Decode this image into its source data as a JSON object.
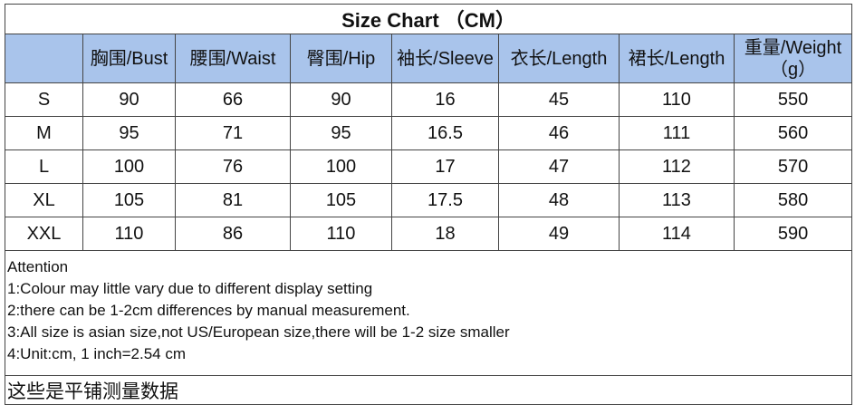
{
  "title": "Size Chart （CM）",
  "table": {
    "header": [
      "",
      "胸围/Bust",
      "腰围/Waist",
      "臀围/Hip",
      "袖长/Sleeve",
      "衣长/Length",
      "裙长/Length",
      "重量/Weight\n（g）"
    ],
    "rows": [
      [
        "S",
        "90",
        "66",
        "90",
        "16",
        "45",
        "110",
        "550"
      ],
      [
        "M",
        "95",
        "71",
        "95",
        "16.5",
        "46",
        "111",
        "560"
      ],
      [
        "L",
        "100",
        "76",
        "100",
        "17",
        "47",
        "112",
        "570"
      ],
      [
        "XL",
        "105",
        "81",
        "105",
        "17.5",
        "48",
        "113",
        "580"
      ],
      [
        "XXL",
        "110",
        "86",
        "110",
        "18",
        "49",
        "114",
        "590"
      ]
    ]
  },
  "notes": [
    "Attention",
    "1:Colour may little vary due to different display setting",
    "2:there can be 1-2cm differences by manual measurement.",
    "3:All size is asian size,not US/European size,there will be 1-2 size smaller",
    "4:Unit:cm, 1 inch=2.54 cm"
  ],
  "footer": "这些是平铺测量数据"
}
